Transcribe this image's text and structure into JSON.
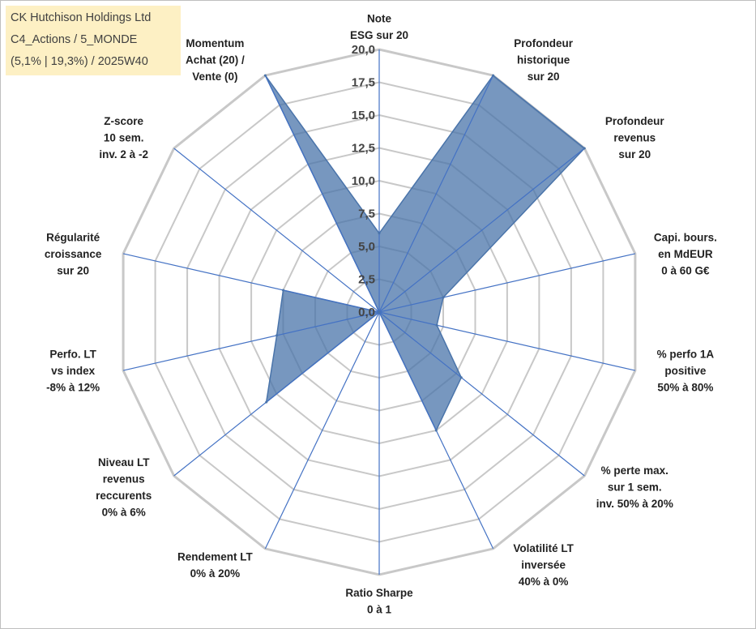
{
  "title_box": {
    "line1": "CK Hutchison Holdings Ltd",
    "line2": "C4_Actions / 5_MONDE",
    "line3": "(5,1% | 19,3%) / 2025W40",
    "bg_color": "#fdf0c4"
  },
  "chart_data": {
    "type": "radar",
    "title": "CK Hutchison Holdings Ltd",
    "range": [
      0,
      20
    ],
    "tick_labels": [
      "0,0",
      "2,5",
      "5,0",
      "7,5",
      "10,0",
      "12,5",
      "15,0",
      "17,5",
      "20,0"
    ],
    "axes": [
      {
        "label": [
          "Note",
          "ESG sur 20"
        ],
        "value": 6
      },
      {
        "label": [
          "Profondeur",
          "historique",
          "sur 20"
        ],
        "value": 20
      },
      {
        "label": [
          "Profondeur",
          "revenus",
          "sur 20"
        ],
        "value": 20
      },
      {
        "label": [
          "Capi. bours.",
          "en MdEUR",
          "0 à 60 G€"
        ],
        "value": 5
      },
      {
        "label": [
          "% perfo 1A",
          "positive",
          "50% à 80%"
        ],
        "value": 4.5
      },
      {
        "label": [
          "% perte max.",
          "sur 1 sem.",
          "inv. 50% à 20%"
        ],
        "value": 8
      },
      {
        "label": [
          "Volatilité LT",
          "inversée",
          "40% à 0%"
        ],
        "value": 10
      },
      {
        "label": [
          "Ratio Sharpe",
          "0 à 1"
        ],
        "value": 0
      },
      {
        "label": [
          "Rendement LT",
          "0% à 20%"
        ],
        "value": 0
      },
      {
        "label": [
          "Niveau LT",
          "revenus",
          "reccurents",
          "0% à 6%"
        ],
        "value": 11
      },
      {
        "label": [
          "Perfo. LT",
          "vs index",
          "-8% à 12%"
        ],
        "value": 8
      },
      {
        "label": [
          "Régularité",
          "croissance",
          "sur 20"
        ],
        "value": 7.5
      },
      {
        "label": [
          "Z-score",
          "10 sem.",
          "inv. 2 à -2"
        ],
        "value": 0
      },
      {
        "label": [
          "Momentum",
          "Achat (20) /",
          "Vente (0)"
        ],
        "value": 20
      }
    ],
    "series": [
      {
        "name": "CK Hutchison Holdings Ltd",
        "color": "#4a74aa"
      }
    ],
    "grid_color": "#c8c8c8",
    "spoke_color": "#4472c4"
  }
}
